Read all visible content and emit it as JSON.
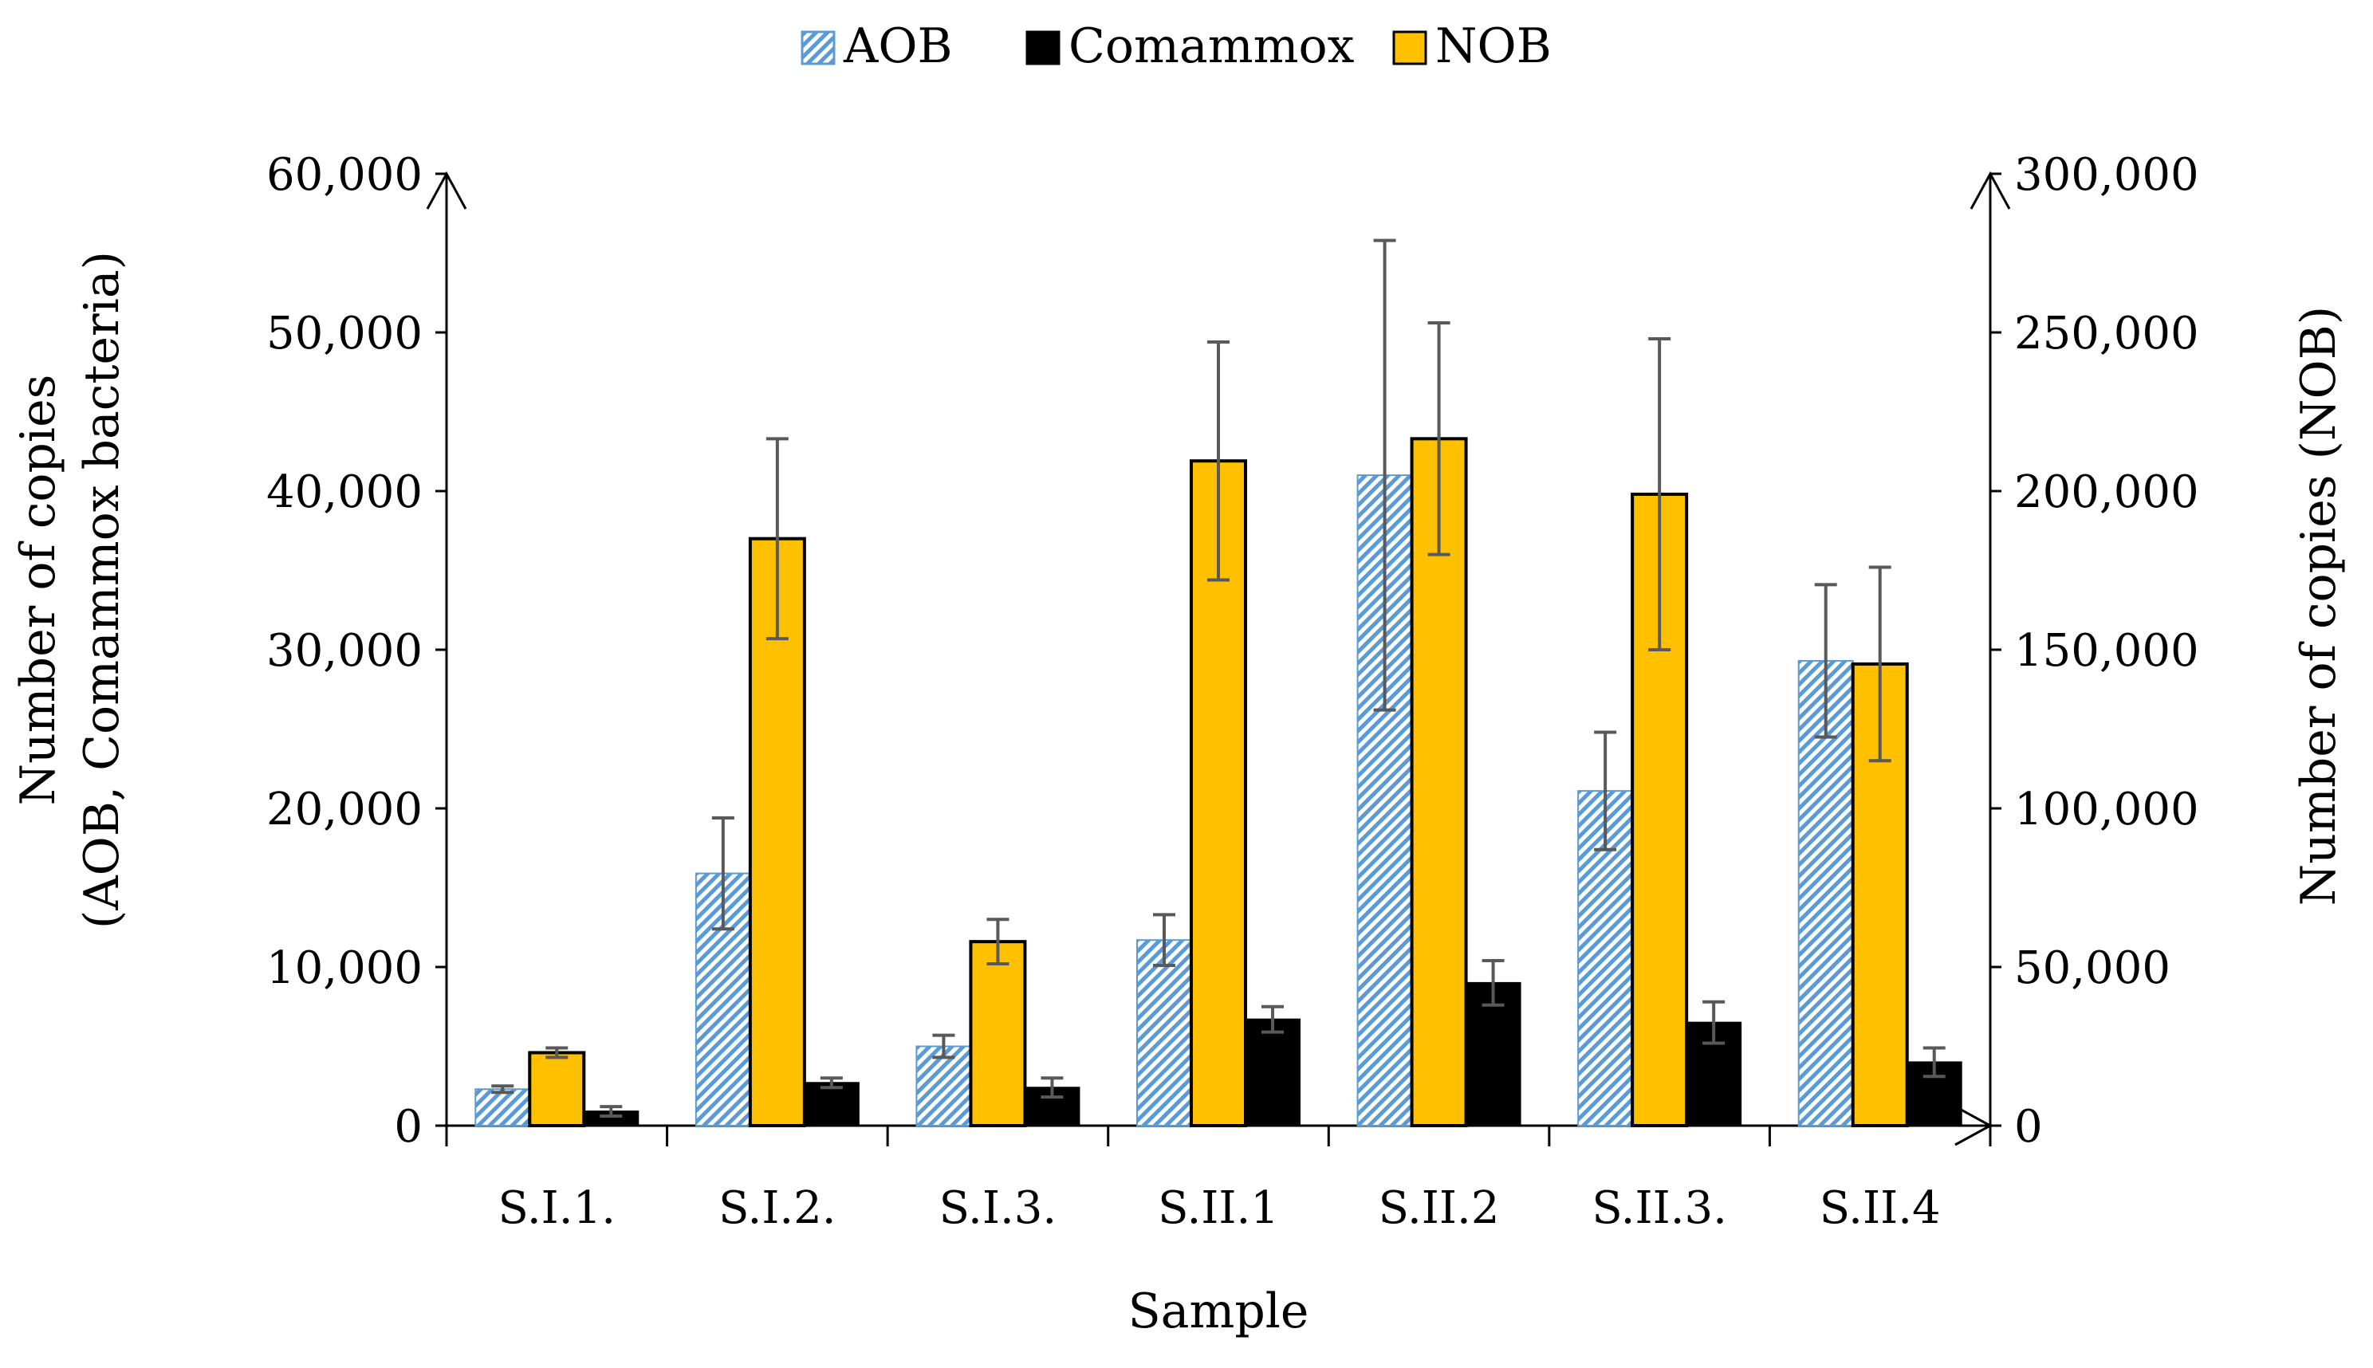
{
  "chart_data": {
    "type": "bar",
    "title": "",
    "xlabel": "Sample",
    "ylabel": [
      "Number of copies",
      "(AOB, Comammox bacteria)"
    ],
    "y2label": "Number of copies (NOB)",
    "categories": [
      "S.I.1.",
      "S.I.2.",
      "S.I.3.",
      "S.II.1",
      "S.II.2",
      "S.II.3.",
      "S.II.4"
    ],
    "ylim": [
      0,
      60000
    ],
    "y2lim": [
      0,
      300000
    ],
    "yticks": [
      0,
      10000,
      20000,
      30000,
      40000,
      50000,
      60000
    ],
    "y2ticks": [
      0,
      50000,
      100000,
      150000,
      200000,
      250000,
      300000
    ],
    "ytick_labels": [
      "0",
      "10,000",
      "20,000",
      "30,000",
      "40,000",
      "50,000",
      "60,000"
    ],
    "y2tick_labels": [
      "0",
      "50,000",
      "100,000",
      "150,000",
      "200,000",
      "250,000",
      "300,000"
    ],
    "legend_position": "top-center",
    "series": [
      {
        "name": "AOB",
        "axis": "left",
        "style": "hatched",
        "color": "#5B9BD5",
        "values": [
          2300,
          15900,
          5000,
          11700,
          41000,
          21100,
          29300
        ],
        "errors": [
          200,
          3500,
          700,
          1600,
          14800,
          3700,
          4800
        ]
      },
      {
        "name": "Comammox",
        "axis": "left",
        "style": "solid",
        "color": "#000000",
        "values": [
          900,
          2700,
          2400,
          6700,
          9000,
          6500,
          4000
        ],
        "errors": [
          300,
          300,
          600,
          800,
          1400,
          1300,
          900
        ]
      },
      {
        "name": "NOB",
        "axis": "right",
        "style": "solid",
        "color": "#FFC000",
        "values": [
          23000,
          185000,
          58000,
          209500,
          216500,
          199000,
          145500
        ],
        "errors": [
          1500,
          31500,
          7000,
          37500,
          36500,
          49000,
          30500
        ]
      }
    ]
  }
}
